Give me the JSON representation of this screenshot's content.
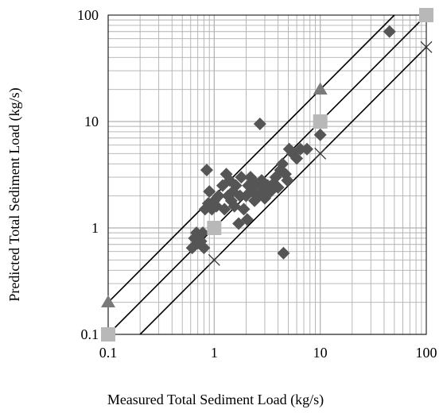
{
  "chart_data": {
    "type": "scatter",
    "title": "",
    "xlabel": "Measured  Total Sediment Load (kg/s)",
    "ylabel": "Predicted Total Sediment Load (kg/s)",
    "xscale": "log",
    "yscale": "log",
    "xlim": [
      0.1,
      100
    ],
    "ylim": [
      0.1,
      100
    ],
    "xticks": [
      {
        "value": 0.1,
        "label": "0.1"
      },
      {
        "value": 1,
        "label": "1"
      },
      {
        "value": 10,
        "label": "10"
      },
      {
        "value": 100,
        "label": "100"
      }
    ],
    "yticks": [
      {
        "value": 0.1,
        "label": "0.1"
      },
      {
        "value": 1,
        "label": "1"
      },
      {
        "value": 10,
        "label": "10"
      },
      {
        "value": 100,
        "label": "100"
      }
    ],
    "grid": true,
    "legend": "none",
    "colors": {
      "diamond": "#555555",
      "square": "#b8b8b8",
      "triangle": "#7a7a7a",
      "cross": "#333333",
      "line": "#000000",
      "grid": "#b0b0b0"
    },
    "reference_lines": [
      {
        "points": [
          [
            0.1,
            0.2
          ],
          [
            50,
            100
          ]
        ]
      },
      {
        "points": [
          [
            0.1,
            0.1
          ],
          [
            100,
            100
          ]
        ]
      },
      {
        "points": [
          [
            0.2,
            0.1
          ],
          [
            100,
            50
          ]
        ]
      }
    ],
    "series": [
      {
        "marker": "diamond",
        "points": [
          [
            0.62,
            0.65
          ],
          [
            0.65,
            0.8
          ],
          [
            0.68,
            0.9
          ],
          [
            0.7,
            0.72
          ],
          [
            0.72,
            0.85
          ],
          [
            0.75,
            0.75
          ],
          [
            0.78,
            0.9
          ],
          [
            0.8,
            0.65
          ],
          [
            0.82,
            1.5
          ],
          [
            0.85,
            3.5
          ],
          [
            0.88,
            1.7
          ],
          [
            0.9,
            2.2
          ],
          [
            0.95,
            1.5
          ],
          [
            1.0,
            1.8
          ],
          [
            1.05,
            1.6
          ],
          [
            1.1,
            2.0
          ],
          [
            1.2,
            2.5
          ],
          [
            1.25,
            1.5
          ],
          [
            1.3,
            3.2
          ],
          [
            1.35,
            2.0
          ],
          [
            1.4,
            2.8
          ],
          [
            1.45,
            1.8
          ],
          [
            1.5,
            2.2
          ],
          [
            1.55,
            1.6
          ],
          [
            1.6,
            2.5
          ],
          [
            1.7,
            1.1
          ],
          [
            1.75,
            2.0
          ],
          [
            1.8,
            3.0
          ],
          [
            1.9,
            1.5
          ],
          [
            2.0,
            2.0
          ],
          [
            2.05,
            1.2
          ],
          [
            2.1,
            2.5
          ],
          [
            2.2,
            3.0
          ],
          [
            2.3,
            2.2
          ],
          [
            2.4,
            1.8
          ],
          [
            2.5,
            2.6
          ],
          [
            2.6,
            2.0
          ],
          [
            2.7,
            9.5
          ],
          [
            2.8,
            2.8
          ],
          [
            2.9,
            2.3
          ],
          [
            3.0,
            1.9
          ],
          [
            3.2,
            2.5
          ],
          [
            3.4,
            2.2
          ],
          [
            3.6,
            2.6
          ],
          [
            3.8,
            3.0
          ],
          [
            4.0,
            2.4
          ],
          [
            4.2,
            3.5
          ],
          [
            4.4,
            4.0
          ],
          [
            4.5,
            0.58
          ],
          [
            4.7,
            3.2
          ],
          [
            4.9,
            2.8
          ],
          [
            5.1,
            5.5
          ],
          [
            5.5,
            5.0
          ],
          [
            6.0,
            4.5
          ],
          [
            6.5,
            5.5
          ],
          [
            7.5,
            5.5
          ],
          [
            10.0,
            7.5
          ],
          [
            45.0,
            70.0
          ]
        ]
      },
      {
        "marker": "square",
        "points": [
          [
            0.1,
            0.1
          ],
          [
            1.0,
            1.0
          ],
          [
            10.0,
            10.0
          ],
          [
            100.0,
            100.0
          ]
        ]
      },
      {
        "marker": "triangle",
        "points": [
          [
            0.1,
            0.2
          ],
          [
            10.0,
            20.0
          ]
        ]
      },
      {
        "marker": "cross",
        "points": [
          [
            1.0,
            0.5
          ],
          [
            10.0,
            5.0
          ],
          [
            100.0,
            50.0
          ]
        ]
      }
    ]
  }
}
